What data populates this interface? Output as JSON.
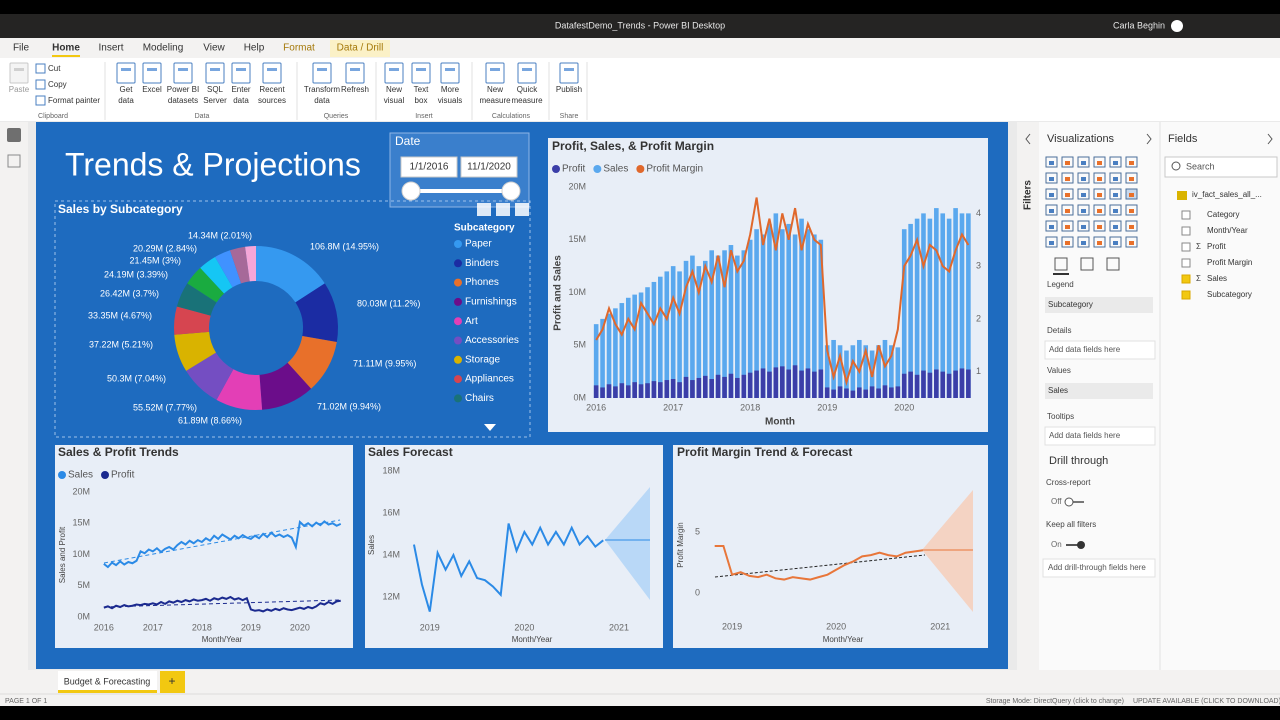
{
  "window": {
    "title": "DatafestDemo_Trends - Power BI Desktop",
    "user": "Carla Beghin"
  },
  "ribbon": {
    "tabs": [
      "File",
      "Home",
      "Insert",
      "Modeling",
      "View",
      "Help",
      "Format",
      "Data / Drill"
    ],
    "groups": [
      {
        "name": "Clipboard",
        "buttons": [
          {
            "label": [
              "Paste"
            ]
          },
          {
            "label": [
              "Cut"
            ]
          },
          {
            "label": [
              "Copy"
            ]
          },
          {
            "label": [
              "Format painter"
            ]
          }
        ]
      },
      {
        "name": "Data",
        "buttons": [
          {
            "label": [
              "Get",
              "data"
            ]
          },
          {
            "label": [
              "Excel"
            ]
          },
          {
            "label": [
              "Power BI",
              "datasets"
            ]
          },
          {
            "label": [
              "SQL",
              "Server"
            ]
          },
          {
            "label": [
              "Enter",
              "data"
            ]
          },
          {
            "label": [
              "Recent",
              "sources"
            ]
          }
        ]
      },
      {
        "name": "Queries",
        "buttons": [
          {
            "label": [
              "Transform",
              "data"
            ]
          },
          {
            "label": [
              "Refresh"
            ]
          }
        ]
      },
      {
        "name": "Insert",
        "buttons": [
          {
            "label": [
              "New",
              "visual"
            ]
          },
          {
            "label": [
              "Text",
              "box"
            ]
          },
          {
            "label": [
              "More",
              "visuals"
            ]
          }
        ]
      },
      {
        "name": "Calculations",
        "buttons": [
          {
            "label": [
              "New",
              "measure"
            ]
          },
          {
            "label": [
              "Quick",
              "measure"
            ]
          }
        ]
      },
      {
        "name": "Share",
        "buttons": [
          {
            "label": [
              "Publish"
            ]
          }
        ]
      }
    ]
  },
  "report": {
    "title": "Trends & Projections",
    "slicer": {
      "title": "Date",
      "start": "1/1/2016",
      "end": "11/1/2020"
    }
  },
  "chart_data": [
    {
      "type": "donut",
      "title": "Sales by Subcategory",
      "legend_title": "Subcategory",
      "categories": [
        "Paper",
        "Binders",
        "Phones",
        "Furnishings",
        "Art",
        "Accessories",
        "Storage",
        "Appliances",
        "Chairs",
        null,
        null,
        null,
        null,
        null
      ],
      "values": [
        106.8,
        80.03,
        71.11,
        71.02,
        61.89,
        55.52,
        50.3,
        37.22,
        33.35,
        26.42,
        24.19,
        21.45,
        20.29,
        14.34
      ],
      "value_labels": [
        "106.8M (14.95%)",
        "80.03M (11.2%)",
        "71.11M (9.95%)",
        "71.02M (9.94%)",
        "61.89M (8.66%)",
        "55.52M (7.77%)",
        "50.3M (7.04%)",
        "37.22M (5.21%)",
        "33.35M (4.67%)",
        "26.42M (3.7%)",
        "24.19M (3.39%)",
        "21.45M (3%)",
        "20.29M (2.84%)",
        "14.34M (2.01%)"
      ],
      "colors": [
        "#3599f0",
        "#1b2ca3",
        "#e8702a",
        "#6b0d8a",
        "#e33fb6",
        "#744ec2",
        "#d9b300",
        "#d64550",
        "#197278",
        "#1aab40",
        "#15c6f4",
        "#4092ff",
        "#a66999",
        "#f5a6d8"
      ]
    },
    {
      "type": "combo",
      "title": "Profit, Sales, & Profit Margin",
      "x_label": "Month",
      "y_label": "Profit and Sales",
      "x": [
        2016,
        2016.083,
        2016.167,
        2016.25,
        2016.333,
        2016.417,
        2016.5,
        2016.583,
        2016.667,
        2016.75,
        2016.833,
        2016.917,
        2017,
        2017.083,
        2017.167,
        2017.25,
        2017.333,
        2017.417,
        2017.5,
        2017.583,
        2017.667,
        2017.75,
        2017.833,
        2017.917,
        2018,
        2018.083,
        2018.167,
        2018.25,
        2018.333,
        2018.417,
        2018.5,
        2018.583,
        2018.667,
        2018.75,
        2018.833,
        2018.917,
        2019,
        2019.083,
        2019.167,
        2019.25,
        2019.333,
        2019.417,
        2019.5,
        2019.583,
        2019.667,
        2019.75,
        2019.833,
        2019.917,
        2020,
        2020.083,
        2020.167,
        2020.25,
        2020.333,
        2020.417,
        2020.5,
        2020.583,
        2020.667,
        2020.75,
        2020.833
      ],
      "series": [
        {
          "name": "Profit",
          "kind": "bar",
          "color": "#3b3ea8",
          "values": [
            1.2,
            1.0,
            1.3,
            1.1,
            1.4,
            1.2,
            1.5,
            1.3,
            1.4,
            1.6,
            1.5,
            1.7,
            1.8,
            1.5,
            2.0,
            1.7,
            1.9,
            2.1,
            1.8,
            2.2,
            2.0,
            2.3,
            1.9,
            2.2,
            2.4,
            2.6,
            2.8,
            2.5,
            2.9,
            3.0,
            2.7,
            3.1,
            2.6,
            2.8,
            2.5,
            2.7,
            1.0,
            0.8,
            1.1,
            0.9,
            0.7,
            1.0,
            0.8,
            1.1,
            0.9,
            1.2,
            1.0,
            1.1,
            2.3,
            2.5,
            2.2,
            2.6,
            2.4,
            2.7,
            2.5,
            2.3,
            2.6,
            2.8,
            2.7
          ]
        },
        {
          "name": "Sales",
          "kind": "bar",
          "color": "#5aa8ee",
          "values": [
            7,
            7.5,
            8,
            8.5,
            9,
            9.5,
            9.8,
            10,
            10.5,
            11,
            11.5,
            12,
            12.5,
            12,
            13,
            13.5,
            12.5,
            13,
            14,
            13.5,
            14,
            14.5,
            13.5,
            14,
            15,
            16,
            15.5,
            16.5,
            17.5,
            16,
            16.5,
            15.5,
            17,
            16,
            15.5,
            15,
            5,
            5.5,
            5,
            4.5,
            5,
            5.5,
            5,
            4.5,
            5,
            5.5,
            5,
            4.8,
            16,
            16.5,
            17,
            17.5,
            17,
            18,
            17.5,
            17,
            18,
            17.5,
            17.5
          ]
        },
        {
          "name": "Profit Margin",
          "kind": "line",
          "axis": "y2",
          "color": "#e0682c",
          "values": [
            1.6,
            1.8,
            2.2,
            1.9,
            1.7,
            2.0,
            1.8,
            2.3,
            2.1,
            1.9,
            2.2,
            2.0,
            2.4,
            2.1,
            2.6,
            2.9,
            2.5,
            3.0,
            2.7,
            3.2,
            2.6,
            3.3,
            2.9,
            3.1,
            3.6,
            4.3,
            3.4,
            3.9,
            3.3,
            4.0,
            3.5,
            4.1,
            3.3,
            3.8,
            3.5,
            3.4,
            1.4,
            0.9,
            1.3,
            0.8,
            1.2,
            1.0,
            1.4,
            0.9,
            1.5,
            1.1,
            1.3,
            1.8,
            3.0,
            3.2,
            3.5,
            3.0,
            3.4,
            3.3,
            3.0,
            2.9,
            3.3,
            3.6,
            3.4
          ]
        }
      ],
      "xlim": [
        2015.92,
        2020.88
      ],
      "xticks": [
        2016,
        2017,
        2018,
        2019,
        2020
      ],
      "ylim": [
        0,
        20
      ],
      "yticks": [
        {
          "value": 0,
          "label": "0M"
        },
        {
          "value": 5,
          "label": "5M"
        },
        {
          "value": 10,
          "label": "10M"
        },
        {
          "value": 15,
          "label": "15M"
        },
        {
          "value": 20,
          "label": "20M"
        }
      ],
      "y2lim": [
        0.5,
        4.5
      ],
      "y2ticks": [
        1,
        2,
        3,
        4
      ]
    },
    {
      "type": "line",
      "title": "Sales & Profit Trends",
      "x_label": "Month/Year",
      "y_label": "Sales and Profit",
      "x": [
        2016,
        2016.083,
        2016.167,
        2016.25,
        2016.333,
        2016.417,
        2016.5,
        2016.583,
        2016.667,
        2016.75,
        2016.833,
        2016.917,
        2017,
        2017.083,
        2017.167,
        2017.25,
        2017.333,
        2017.417,
        2017.5,
        2017.583,
        2017.667,
        2017.75,
        2017.833,
        2017.917,
        2018,
        2018.083,
        2018.167,
        2018.25,
        2018.333,
        2018.417,
        2018.5,
        2018.583,
        2018.667,
        2018.75,
        2018.833,
        2018.917,
        2019,
        2019.083,
        2019.167,
        2019.25,
        2019.333,
        2019.417,
        2019.5,
        2019.583,
        2019.667,
        2019.75,
        2019.833,
        2019.917,
        2020,
        2020.083,
        2020.167,
        2020.25,
        2020.333,
        2020.417,
        2020.5,
        2020.583,
        2020.667,
        2020.75,
        2020.833
      ],
      "series": [
        {
          "name": "Sales",
          "color": "#2b8ae6",
          "values": [
            8.5,
            8.0,
            8.7,
            8.3,
            8.9,
            8.4,
            8.8,
            8.6,
            9.0,
            10.5,
            10.2,
            10.8,
            10.5,
            11.0,
            10.4,
            10.9,
            11.2,
            10.8,
            11.5,
            12.0,
            11.6,
            12.2,
            11.8,
            12.3,
            12.0,
            12.6,
            12.2,
            13.0,
            12.5,
            13.2,
            12.8,
            12.4,
            13.0,
            12.6,
            13.1,
            12.7,
            12.5,
            13.0,
            12.6,
            13.3,
            12.8,
            13.5,
            12.9,
            13.2,
            12.8,
            13.1,
            12.7,
            11.2,
            15.2,
            14.6,
            15.0,
            14.5,
            15.1,
            14.7,
            15.3,
            14.8,
            15.0,
            14.6,
            14.9
          ]
        },
        {
          "name": "Profit",
          "color": "#1b2a8f",
          "values": [
            1.5,
            1.7,
            1.4,
            1.8,
            1.6,
            1.9,
            1.7,
            1.8,
            2.0,
            1.9,
            2.1,
            2.0,
            2.2,
            2.0,
            2.4,
            2.1,
            2.5,
            2.3,
            2.6,
            2.4,
            2.7,
            2.5,
            2.8,
            2.6,
            2.7,
            2.9,
            2.6,
            3.0,
            2.8,
            3.1,
            2.9,
            3.2,
            2.8,
            3.0,
            2.7,
            3.0,
            1.2,
            1.0,
            1.1,
            0.9,
            1.2,
            1.0,
            1.3,
            1.1,
            1.4,
            1.2,
            1.1,
            1.3,
            1.5,
            1.3,
            1.6,
            1.4,
            1.7,
            2.2,
            2.0,
            2.4,
            2.1,
            2.5,
            2.6
          ]
        }
      ],
      "xlim": [
        2015.82,
        2020.92
      ],
      "xticks": [
        2016,
        2017,
        2018,
        2019,
        2020
      ],
      "ylim": [
        0,
        20
      ],
      "yticks": [
        {
          "value": 0,
          "label": "0M"
        },
        {
          "value": 5,
          "label": "5M"
        },
        {
          "value": 10,
          "label": "10M"
        },
        {
          "value": 15,
          "label": "15M"
        },
        {
          "value": 20,
          "label": "20M"
        }
      ]
    },
    {
      "type": "line",
      "title": "Sales Forecast",
      "x_label": "Month/Year",
      "y_label": "Sales",
      "color": "#2b8ae6",
      "x": [
        2018.833,
        2018.917,
        2019,
        2019.083,
        2019.167,
        2019.25,
        2019.333,
        2019.417,
        2019.5,
        2019.583,
        2019.667,
        2019.75,
        2019.833,
        2019.917,
        2020,
        2020.083,
        2020.167,
        2020.25,
        2020.333,
        2020.417,
        2020.5,
        2020.583,
        2020.667,
        2020.75,
        2020.833
      ],
      "values": [
        14.5,
        12.6,
        11.3,
        14.1,
        13.3,
        14.0,
        13.0,
        13.7,
        12.9,
        12.8,
        12.5,
        12.1,
        15.5,
        14.2,
        15.1,
        14.5,
        15.3,
        14.5,
        15.1,
        14.5,
        15.3,
        14.5,
        14.9,
        14.4,
        14.7
      ],
      "xlim": [
        2018.77,
        2021.38
      ],
      "xticks": [
        2019,
        2020,
        2021
      ],
      "ylim": [
        11.14,
        18.29
      ],
      "yticks": [
        {
          "value": 12,
          "label": "12M"
        },
        {
          "value": 14,
          "label": "14M"
        },
        {
          "value": 16,
          "label": "16M"
        },
        {
          "value": 18,
          "label": "18M"
        }
      ]
    },
    {
      "type": "line",
      "title": "Profit Margin Trend & Forecast",
      "x_label": "Month/Year",
      "y_label": "Profit Margin",
      "color": "#e8763a",
      "x": [
        2018.833,
        2018.917,
        2019,
        2019.083,
        2019.167,
        2019.25,
        2019.333,
        2019.417,
        2019.5,
        2019.583,
        2019.667,
        2019.75,
        2019.833,
        2019.917,
        2020,
        2020.083,
        2020.167,
        2020.25,
        2020.333,
        2020.417,
        2020.5,
        2020.583,
        2020.667,
        2020.75,
        2020.833
      ],
      "values": [
        3.85,
        3.85,
        1.5,
        1.7,
        1.4,
        1.3,
        1.5,
        1.2,
        1.1,
        1.3,
        1.2,
        1.1,
        1.3,
        1.5,
        1.9,
        2.3,
        2.6,
        3.0,
        3.1,
        3.3,
        3.1,
        3.0,
        3.3,
        3.4,
        3.5
      ],
      "xlim": [
        2018.74,
        2021.43
      ],
      "xticks": [
        2019,
        2020,
        2021
      ],
      "ylim": [
        -1.56,
        9.26
      ],
      "yticks": [
        0,
        5
      ]
    }
  ],
  "filters": {
    "title": "Filters"
  },
  "visualizations": {
    "title": "Visualizations",
    "wells": [
      {
        "name": "Legend",
        "field": "Subcategory"
      },
      {
        "name": "Details",
        "placeholder": "Add data fields here"
      },
      {
        "name": "Values",
        "field": "Sales"
      },
      {
        "name": "Tooltips",
        "placeholder": "Add data fields here"
      }
    ],
    "drill": {
      "title": "Drill through",
      "cross_report": "Cross-report",
      "cross_state": "Off",
      "keep": "Keep all filters",
      "keep_state": "On",
      "placeholder": "Add drill-through fields here"
    }
  },
  "fields": {
    "title": "Fields",
    "search": "Search",
    "table": "iv_fact_sales_all_...",
    "items": [
      {
        "name": "Category",
        "checked": false,
        "icon": null
      },
      {
        "name": "Month/Year",
        "checked": false,
        "icon": null
      },
      {
        "name": "Profit",
        "checked": false,
        "icon": "Σ"
      },
      {
        "name": "Profit Margin",
        "checked": false,
        "icon": null
      },
      {
        "name": "Sales",
        "checked": true,
        "icon": "Σ"
      },
      {
        "name": "Subcategory",
        "checked": true,
        "icon": null
      }
    ]
  },
  "pages": {
    "tabs": [
      "Budget & Forecasting"
    ],
    "add": "+"
  },
  "status": {
    "page": "PAGE 1 OF 1",
    "storage": "Storage Mode: DirectQuery (click to change)",
    "update": "UPDATE AVAILABLE (CLICK TO DOWNLOAD)"
  }
}
